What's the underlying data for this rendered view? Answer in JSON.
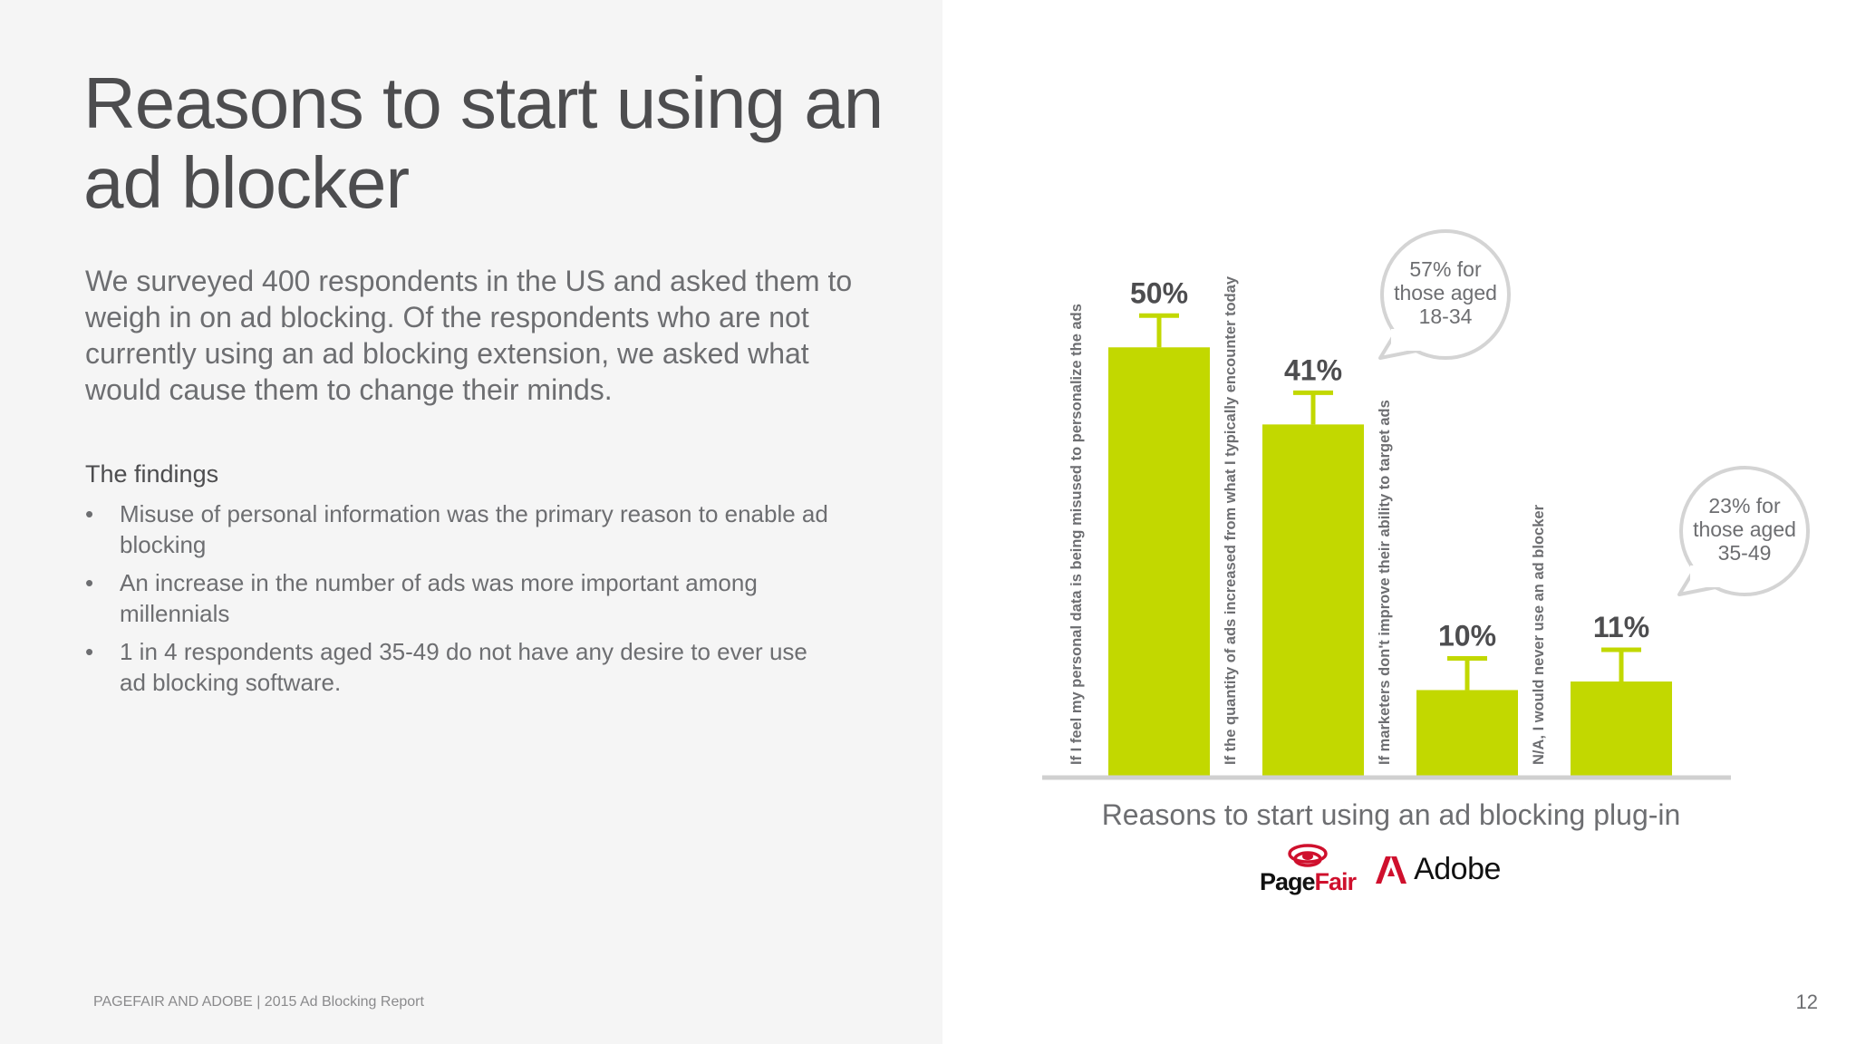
{
  "slide": {
    "title": "Reasons to start using an ad blocker",
    "intro": "We surveyed 400 respondents in the US and asked them to weigh in on ad blocking. Of the respondents who are not currently using an ad blocking extension, we asked what would cause them to change their minds.",
    "findings_title": "The findings",
    "findings": [
      "Misuse of personal information was the primary reason to enable ad blocking",
      "An increase in the number of ads was more important among millennials",
      "1 in 4 respondents aged 35-49 do not have any desire to ever use ad blocking software."
    ],
    "bullet": "•",
    "footer": "PAGEFAIR AND ADOBE  |  2015 Ad Blocking Report",
    "page_number": "12"
  },
  "logos": {
    "pagefair_part1": "Page",
    "pagefair_part2": "Fair",
    "adobe": "Adobe"
  },
  "colors": {
    "bar": "#c2d800",
    "baseline": "#d0d0d0",
    "label": "#4d4d4f",
    "callout_border": "#d4d4d4",
    "brand_red": "#cf102d"
  },
  "chart_data": {
    "type": "bar",
    "title": "Reasons to start using an ad blocking plug-in",
    "categories": [
      "If I feel my personal data is being misused to personalize the ads",
      "If the quantity of ads increased from what I typically encounter today",
      "If marketers don't improve their ability to target ads",
      "N/A, I would never use an ad blocker"
    ],
    "values": [
      50,
      41,
      10,
      11
    ],
    "value_labels": [
      "50%",
      "41%",
      "10%",
      "11%"
    ],
    "ylim": [
      0,
      55
    ],
    "error_bars": true,
    "callouts": [
      {
        "category_index": 1,
        "lines": [
          "57% for",
          "those aged",
          "18-34"
        ]
      },
      {
        "category_index": 3,
        "lines": [
          "23% for",
          "those aged",
          "35-49"
        ]
      }
    ]
  }
}
